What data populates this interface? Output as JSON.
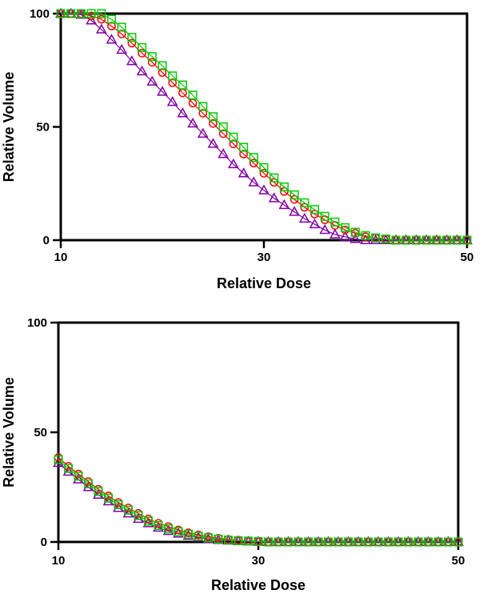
{
  "page": {
    "background": "#FFFFFF",
    "text_color": "#000000"
  },
  "chart_data": [
    {
      "id": "top",
      "type": "line",
      "title": "",
      "xlabel": "Relative Dose",
      "ylabel": "Relative Volume",
      "xlim": [
        10,
        50
      ],
      "ylim": [
        0,
        100
      ],
      "xticks": [
        10,
        30,
        50
      ],
      "yticks": [
        0,
        50,
        100
      ],
      "grid": false,
      "frame": "box",
      "legend": "none",
      "x_start": 10,
      "x_step": 1,
      "series": [
        {
          "name": "triangle-curve",
          "marker": "triangle",
          "color": "#8000A0",
          "values": [
            100,
            100,
            99.5,
            97,
            93,
            88.5,
            84,
            79,
            74.5,
            70,
            65.5,
            61,
            56,
            51.5,
            47,
            42.5,
            38,
            33.5,
            29.5,
            25.5,
            22,
            18.5,
            15.5,
            12.5,
            9.5,
            7,
            4.5,
            2.5,
            1.5,
            0.5,
            0,
            0,
            0,
            0,
            0,
            0,
            0,
            0,
            0,
            0,
            0
          ]
        },
        {
          "name": "circle-curve",
          "marker": "circle",
          "color": "#FF0000",
          "values": [
            100,
            100,
            100,
            99,
            97.5,
            94.5,
            91,
            87,
            82.5,
            78.5,
            74,
            69.5,
            65,
            60.5,
            56,
            51.5,
            47,
            42.5,
            38,
            34,
            29.5,
            25.5,
            21.5,
            18,
            14.5,
            11.5,
            9,
            6.5,
            4.5,
            3,
            1.5,
            1,
            0.5,
            0,
            0,
            0,
            0,
            0,
            0,
            0,
            0
          ]
        },
        {
          "name": "square-curve",
          "marker": "square",
          "color": "#00CC00",
          "values": [
            100,
            100,
            100,
            100,
            100,
            97.5,
            94,
            89.5,
            85,
            81,
            77,
            72.5,
            68.5,
            64,
            59,
            54.5,
            50,
            45.5,
            41,
            36.5,
            32,
            27.5,
            23.5,
            20,
            16.5,
            13.5,
            10.5,
            8,
            5.5,
            3.5,
            2,
            1,
            0.5,
            0,
            0,
            0,
            0,
            0,
            0,
            0,
            0
          ]
        }
      ]
    },
    {
      "id": "bottom",
      "type": "line",
      "title": "",
      "xlabel": "Relative Dose",
      "ylabel": "Relative Volume",
      "xlim": [
        10,
        50
      ],
      "ylim": [
        0,
        100
      ],
      "xticks": [
        10,
        30,
        50
      ],
      "yticks": [
        0,
        50,
        100
      ],
      "grid": false,
      "frame": "box",
      "legend": "none",
      "x_start": 10,
      "x_step": 1,
      "series": [
        {
          "name": "triangle-curve",
          "marker": "triangle",
          "color": "#8000A0",
          "values": [
            36,
            32,
            28.5,
            25,
            21.5,
            18.5,
            15.5,
            13,
            10.5,
            8.5,
            6.5,
            5,
            3.8,
            2.8,
            2,
            1.4,
            0.9,
            0.6,
            0.4,
            0.2,
            0.1,
            0,
            0,
            0,
            0,
            0,
            0,
            0,
            0,
            0,
            0,
            0,
            0,
            0,
            0,
            0,
            0,
            0,
            0,
            0,
            0
          ]
        },
        {
          "name": "circle-curve",
          "marker": "circle",
          "color": "#FF0000",
          "values": [
            38.5,
            34.5,
            31,
            27.5,
            24,
            21,
            18,
            15.5,
            13,
            10.5,
            8.5,
            7,
            5.5,
            4.2,
            3.2,
            2.4,
            1.7,
            1.2,
            0.8,
            0.5,
            0.3,
            0,
            0,
            0,
            0,
            0,
            0,
            0,
            0,
            0,
            0,
            0,
            0,
            0,
            0,
            0,
            0,
            0,
            0,
            0,
            0
          ]
        },
        {
          "name": "square-curve",
          "marker": "square",
          "color": "#00CC00",
          "values": [
            37.5,
            33.5,
            30,
            26.5,
            23,
            20,
            17,
            14.5,
            12,
            9.5,
            7.5,
            6,
            4.7,
            3.5,
            2.6,
            1.9,
            1.3,
            0.9,
            0.6,
            0.4,
            0.2,
            0,
            0,
            0,
            0,
            0,
            0,
            0,
            0,
            0,
            0,
            0,
            0,
            0,
            0,
            0,
            0,
            0,
            0,
            0,
            0
          ]
        }
      ]
    }
  ]
}
